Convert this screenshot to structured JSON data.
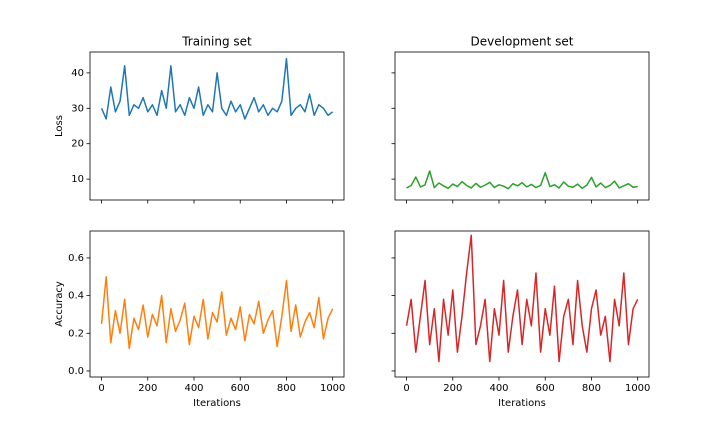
{
  "chart_data": [
    {
      "type": "line",
      "title": "Training set",
      "ylabel": "Loss",
      "color": "#1f77b4",
      "x": [
        0,
        20,
        40,
        60,
        80,
        100,
        120,
        140,
        160,
        180,
        200,
        220,
        240,
        260,
        280,
        300,
        320,
        340,
        360,
        380,
        400,
        420,
        440,
        460,
        480,
        500,
        520,
        540,
        560,
        580,
        600,
        620,
        640,
        660,
        680,
        700,
        720,
        740,
        760,
        780,
        800,
        820,
        840,
        860,
        880,
        900,
        920,
        940,
        960,
        980,
        1000
      ],
      "values": [
        30,
        27,
        36,
        29,
        32,
        42,
        28,
        31,
        30,
        33,
        29,
        31,
        28,
        35,
        30,
        42,
        29,
        31,
        28,
        33,
        30,
        36,
        28,
        31,
        29,
        40,
        30,
        28,
        32,
        29,
        31,
        27,
        30,
        33,
        29,
        31,
        28,
        30,
        29,
        32,
        44,
        28,
        30,
        31,
        29,
        34,
        28,
        31,
        30,
        28,
        29
      ],
      "xlim": [
        -49.95,
        1048.95
      ],
      "ylim": [
        4.1,
        45.9
      ],
      "xticks": [
        0,
        200,
        400,
        600,
        800,
        1000
      ],
      "yticks": [
        10,
        20,
        30,
        40
      ]
    },
    {
      "type": "line",
      "title": "Development set",
      "color": "#2ca02c",
      "x": [
        0,
        20,
        40,
        60,
        80,
        100,
        120,
        140,
        160,
        180,
        200,
        220,
        240,
        260,
        280,
        300,
        320,
        340,
        360,
        380,
        400,
        420,
        440,
        460,
        480,
        500,
        520,
        540,
        560,
        580,
        600,
        620,
        640,
        660,
        680,
        700,
        720,
        740,
        760,
        780,
        800,
        820,
        840,
        860,
        880,
        900,
        920,
        940,
        960,
        980,
        1000
      ],
      "values": [
        7.5,
        8.2,
        10.6,
        7.8,
        8.4,
        12.3,
        7.6,
        8.9,
        8.1,
        7.4,
        8.6,
        7.9,
        9.3,
        8.2,
        7.5,
        8.8,
        7.7,
        8.3,
        9.1,
        7.6,
        8.4,
        8.0,
        7.3,
        8.7,
        8.1,
        9.0,
        7.8,
        8.5,
        7.6,
        8.2,
        11.8,
        7.9,
        8.4,
        7.5,
        9.2,
        8.0,
        7.7,
        8.6,
        7.4,
        8.3,
        10.5,
        7.8,
        8.9,
        7.6,
        8.2,
        9.4,
        7.5,
        8.1,
        8.7,
        7.7,
        7.9
      ],
      "xlim": [
        -49.95,
        1048.95
      ],
      "ylim": [
        4.1,
        45.9
      ],
      "xticks": [
        0,
        200,
        400,
        600,
        800,
        1000
      ],
      "yticks": [
        10,
        20,
        30,
        40
      ]
    },
    {
      "type": "line",
      "xlabel": "Iterations",
      "ylabel": "Accuracy",
      "color": "#ff7f0e",
      "x": [
        0,
        20,
        40,
        60,
        80,
        100,
        120,
        140,
        160,
        180,
        200,
        220,
        240,
        260,
        280,
        300,
        320,
        340,
        360,
        380,
        400,
        420,
        440,
        460,
        480,
        500,
        520,
        540,
        560,
        580,
        600,
        620,
        640,
        660,
        680,
        700,
        720,
        740,
        760,
        780,
        800,
        820,
        840,
        860,
        880,
        900,
        920,
        940,
        960,
        980,
        1000
      ],
      "values": [
        0.25,
        0.5,
        0.15,
        0.32,
        0.2,
        0.38,
        0.12,
        0.28,
        0.22,
        0.35,
        0.18,
        0.3,
        0.24,
        0.4,
        0.15,
        0.33,
        0.21,
        0.27,
        0.36,
        0.14,
        0.29,
        0.23,
        0.38,
        0.17,
        0.31,
        0.26,
        0.42,
        0.19,
        0.28,
        0.22,
        0.34,
        0.16,
        0.3,
        0.25,
        0.37,
        0.2,
        0.27,
        0.32,
        0.13,
        0.29,
        0.48,
        0.21,
        0.35,
        0.18,
        0.26,
        0.31,
        0.23,
        0.39,
        0.17,
        0.28,
        0.33
      ],
      "xlim": [
        -49.95,
        1048.95
      ],
      "ylim": [
        -0.032,
        0.743
      ],
      "xticks": [
        0,
        200,
        400,
        600,
        800,
        1000
      ],
      "yticks": [
        {
          "value": 0,
          "label": "0.0"
        },
        0.2,
        0.4,
        0.6
      ]
    },
    {
      "type": "line",
      "xlabel": "Iterations",
      "color": "#d62728",
      "x": [
        0,
        20,
        40,
        60,
        80,
        100,
        120,
        140,
        160,
        180,
        200,
        220,
        240,
        260,
        280,
        300,
        320,
        340,
        360,
        380,
        400,
        420,
        440,
        460,
        480,
        500,
        520,
        540,
        560,
        580,
        600,
        620,
        640,
        660,
        680,
        700,
        720,
        740,
        760,
        780,
        800,
        820,
        840,
        860,
        880,
        900,
        920,
        940,
        960,
        980,
        1000
      ],
      "values": [
        0.24,
        0.38,
        0.1,
        0.29,
        0.48,
        0.14,
        0.33,
        0.05,
        0.38,
        0.19,
        0.43,
        0.1,
        0.29,
        0.52,
        0.72,
        0.14,
        0.24,
        0.38,
        0.05,
        0.33,
        0.19,
        0.48,
        0.1,
        0.29,
        0.43,
        0.14,
        0.38,
        0.24,
        0.52,
        0.1,
        0.33,
        0.19,
        0.45,
        0.05,
        0.29,
        0.38,
        0.14,
        0.48,
        0.24,
        0.1,
        0.33,
        0.43,
        0.19,
        0.29,
        0.05,
        0.38,
        0.24,
        0.52,
        0.14,
        0.33,
        0.38
      ],
      "xlim": [
        -49.95,
        1048.95
      ],
      "ylim": [
        -0.032,
        0.743
      ],
      "xticks": [
        0,
        200,
        400,
        600,
        800,
        1000
      ],
      "yticks": [
        0,
        0.2,
        0.4,
        0.6
      ]
    }
  ]
}
